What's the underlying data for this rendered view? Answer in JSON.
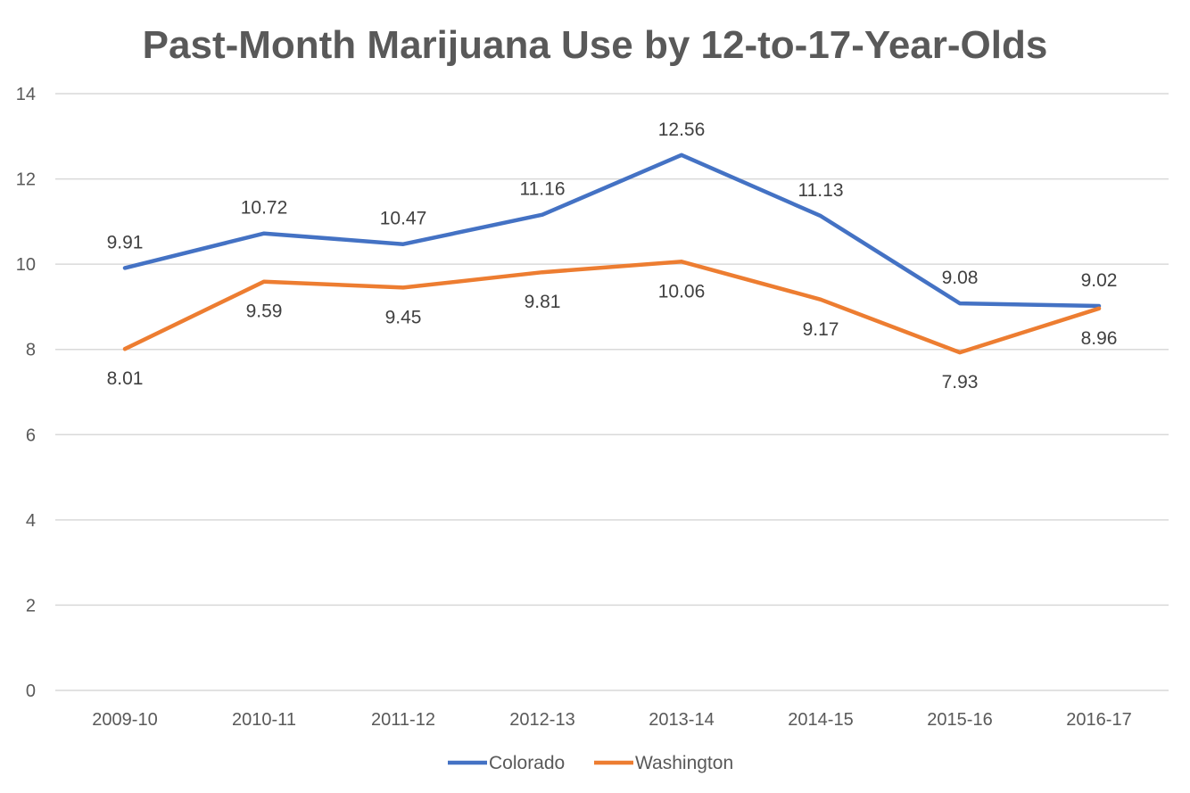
{
  "chart_data": {
    "type": "line",
    "title": "Past-Month Marijuana Use by 12-to-17-Year-Olds",
    "xlabel": "",
    "ylabel": "",
    "categories": [
      "2009-10",
      "2010-11",
      "2011-12",
      "2012-13",
      "2013-14",
      "2014-15",
      "2015-16",
      "2016-17"
    ],
    "series": [
      {
        "name": "Colorado",
        "color": "#4472c4",
        "values": [
          9.91,
          10.72,
          10.47,
          11.16,
          12.56,
          11.13,
          9.08,
          9.02
        ],
        "labels": [
          "9.91",
          "10.72",
          "10.47",
          "11.16",
          "12.56",
          "11.13",
          "9.08",
          "9.02"
        ],
        "label_position": "above"
      },
      {
        "name": "Washington",
        "color": "#ed7d31",
        "values": [
          8.01,
          9.59,
          9.45,
          9.81,
          10.06,
          9.17,
          7.93,
          8.96
        ],
        "labels": [
          "8.01",
          "9.59",
          "9.45",
          "9.81",
          "10.06",
          "9.17",
          "7.93",
          "8.96"
        ],
        "label_position": "below"
      }
    ],
    "ylim": [
      0,
      14
    ],
    "yticks": [
      "0",
      "2",
      "4",
      "6",
      "8",
      "10",
      "12",
      "14"
    ],
    "grid": true,
    "legend_position": "bottom-center"
  }
}
